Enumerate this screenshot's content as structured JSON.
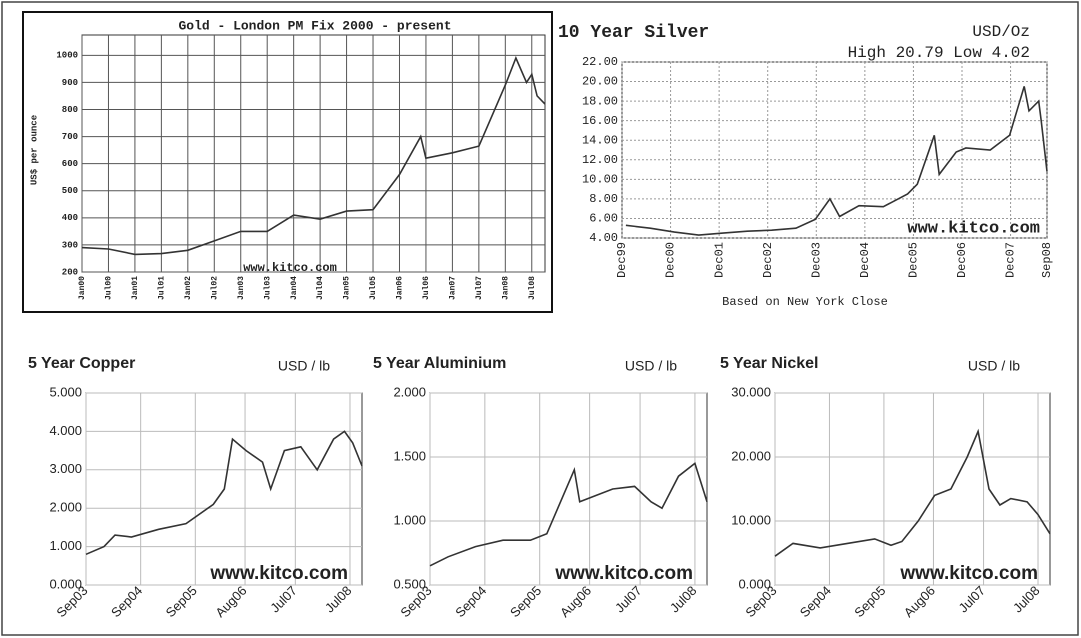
{
  "chart_data": [
    {
      "type": "line",
      "title": "Gold - London PM Fix 2000 - present",
      "ylabel": "US$ per ounce",
      "watermark": "www.kitco.com",
      "color": "#333333",
      "grid": true,
      "x": [
        2000.0,
        2000.5,
        2001.0,
        2001.5,
        2002.0,
        2002.5,
        2003.0,
        2003.5,
        2004.0,
        2004.5,
        2005.0,
        2005.5,
        2006.0,
        2006.4,
        2006.5,
        2007.0,
        2007.5,
        2008.0,
        2008.2,
        2008.4,
        2008.5,
        2008.6,
        2008.75
      ],
      "values": [
        290,
        285,
        265,
        268,
        280,
        315,
        350,
        350,
        410,
        395,
        425,
        430,
        560,
        700,
        620,
        640,
        665,
        890,
        990,
        900,
        930,
        850,
        820
      ],
      "xlim": [
        2000,
        2008.75
      ],
      "ylim": [
        200,
        1075
      ],
      "xticks": [
        {
          "value": 2000.0,
          "label": "Jan00"
        },
        {
          "value": 2000.5,
          "label": "Jul00"
        },
        {
          "value": 2001.0,
          "label": "Jan01"
        },
        {
          "value": 2001.5,
          "label": "Jul01"
        },
        {
          "value": 2002.0,
          "label": "Jan02"
        },
        {
          "value": 2002.5,
          "label": "Jul02"
        },
        {
          "value": 2003.0,
          "label": "Jan03"
        },
        {
          "value": 2003.5,
          "label": "Jul03"
        },
        {
          "value": 2004.0,
          "label": "Jan04"
        },
        {
          "value": 2004.5,
          "label": "Jul04"
        },
        {
          "value": 2005.0,
          "label": "Jan05"
        },
        {
          "value": 2005.5,
          "label": "Jul05"
        },
        {
          "value": 2006.0,
          "label": "Jan06"
        },
        {
          "value": 2006.5,
          "label": "Jul06"
        },
        {
          "value": 2007.0,
          "label": "Jan07"
        },
        {
          "value": 2007.5,
          "label": "Jul07"
        },
        {
          "value": 2008.0,
          "label": "Jan08"
        },
        {
          "value": 2008.5,
          "label": "Jul08"
        }
      ],
      "yticks": [
        200,
        300,
        400,
        500,
        600,
        700,
        800,
        900,
        1000
      ]
    },
    {
      "type": "line",
      "title": "10 Year Silver",
      "subtitle": "USD/Oz",
      "annotation": "High 20.79 Low 4.02",
      "xlabel": "Based on New York Close",
      "watermark": "www.kitco.com",
      "color": "#333333",
      "grid": true,
      "x": [
        2000.0,
        2000.5,
        2001.0,
        2001.5,
        2002.0,
        2002.5,
        2003.0,
        2003.5,
        2003.9,
        2004.2,
        2004.4,
        2004.8,
        2005.3,
        2005.8,
        2006.0,
        2006.35,
        2006.45,
        2006.8,
        2007.0,
        2007.5,
        2007.9,
        2008.2,
        2008.3,
        2008.5,
        2008.55,
        2008.67
      ],
      "values": [
        5.3,
        5.0,
        4.6,
        4.3,
        4.5,
        4.7,
        4.8,
        5.0,
        5.9,
        8.0,
        6.2,
        7.3,
        7.2,
        8.5,
        9.5,
        14.5,
        10.5,
        12.8,
        13.2,
        13.0,
        14.5,
        19.5,
        17.0,
        18.0,
        16.0,
        10.8
      ],
      "xlim": [
        1999.92,
        2008.67
      ],
      "ylim": [
        4,
        22
      ],
      "xticks": [
        {
          "value": 1999.92,
          "label": "Dec99"
        },
        {
          "value": 2000.92,
          "label": "Dec00"
        },
        {
          "value": 2001.92,
          "label": "Dec01"
        },
        {
          "value": 2002.92,
          "label": "Dec02"
        },
        {
          "value": 2003.92,
          "label": "Dec03"
        },
        {
          "value": 2004.92,
          "label": "Dec04"
        },
        {
          "value": 2005.92,
          "label": "Dec05"
        },
        {
          "value": 2006.92,
          "label": "Dec06"
        },
        {
          "value": 2007.92,
          "label": "Dec07"
        },
        {
          "value": 2008.67,
          "label": "Sep08"
        }
      ],
      "yticks": [
        {
          "value": 4,
          "label": "4.00"
        },
        {
          "value": 6,
          "label": "6.00"
        },
        {
          "value": 8,
          "label": "8.00"
        },
        {
          "value": 10,
          "label": "10.00"
        },
        {
          "value": 12,
          "label": "12.00"
        },
        {
          "value": 14,
          "label": "14.00"
        },
        {
          "value": 16,
          "label": "16.00"
        },
        {
          "value": 18,
          "label": "18.00"
        },
        {
          "value": 20,
          "label": "20.00"
        },
        {
          "value": 22,
          "label": "22.00"
        }
      ]
    },
    {
      "type": "line",
      "title": "5 Year Copper",
      "subtitle": "USD / lb",
      "watermark": "www.kitco.com",
      "color": "#333333",
      "grid": true,
      "x": [
        2003.67,
        2004.0,
        2004.2,
        2004.5,
        2005.0,
        2005.5,
        2006.0,
        2006.2,
        2006.35,
        2006.6,
        2006.9,
        2007.05,
        2007.3,
        2007.6,
        2007.9,
        2008.2,
        2008.4,
        2008.55,
        2008.72
      ],
      "values": [
        0.8,
        1.0,
        1.3,
        1.25,
        1.45,
        1.6,
        2.1,
        2.5,
        3.8,
        3.5,
        3.2,
        2.5,
        3.5,
        3.6,
        3.0,
        3.8,
        4.0,
        3.7,
        3.1
      ],
      "xlim": [
        2003.67,
        2008.72
      ],
      "ylim": [
        0,
        5
      ],
      "xticks": [
        {
          "value": 2003.67,
          "label": "Sep03"
        },
        {
          "value": 2004.67,
          "label": "Sep04"
        },
        {
          "value": 2005.67,
          "label": "Sep05"
        },
        {
          "value": 2006.58,
          "label": "Aug06"
        },
        {
          "value": 2007.5,
          "label": "Jul07"
        },
        {
          "value": 2008.5,
          "label": "Jul08"
        }
      ],
      "yticks": [
        {
          "value": 0,
          "label": "0.000"
        },
        {
          "value": 1,
          "label": "1.000"
        },
        {
          "value": 2,
          "label": "2.000"
        },
        {
          "value": 3,
          "label": "3.000"
        },
        {
          "value": 4,
          "label": "4.000"
        },
        {
          "value": 5,
          "label": "5.000"
        }
      ]
    },
    {
      "type": "line",
      "title": "5 Year Aluminium",
      "subtitle": "USD / lb",
      "watermark": "www.kitco.com",
      "color": "#333333",
      "grid": true,
      "x": [
        2003.67,
        2004.0,
        2004.5,
        2005.0,
        2005.5,
        2005.8,
        2006.0,
        2006.3,
        2006.4,
        2006.7,
        2007.0,
        2007.4,
        2007.7,
        2007.9,
        2008.2,
        2008.5,
        2008.72
      ],
      "values": [
        0.65,
        0.72,
        0.8,
        0.85,
        0.85,
        0.9,
        1.1,
        1.4,
        1.15,
        1.2,
        1.25,
        1.27,
        1.15,
        1.1,
        1.35,
        1.45,
        1.15
      ],
      "xlim": [
        2003.67,
        2008.72
      ],
      "ylim": [
        0.5,
        2
      ],
      "xticks": [
        {
          "value": 2003.67,
          "label": "Sep03"
        },
        {
          "value": 2004.67,
          "label": "Sep04"
        },
        {
          "value": 2005.67,
          "label": "Sep05"
        },
        {
          "value": 2006.58,
          "label": "Aug06"
        },
        {
          "value": 2007.5,
          "label": "Jul07"
        },
        {
          "value": 2008.5,
          "label": "Jul08"
        }
      ],
      "yticks": [
        {
          "value": 0.5,
          "label": "0.500"
        },
        {
          "value": 1,
          "label": "1.000"
        },
        {
          "value": 1.5,
          "label": "1.500"
        },
        {
          "value": 2,
          "label": "2.000"
        }
      ]
    },
    {
      "type": "line",
      "title": "5 Year Nickel",
      "subtitle": "USD / lb",
      "watermark": "www.kitco.com",
      "color": "#333333",
      "grid": true,
      "x": [
        2003.67,
        2004.0,
        2004.5,
        2005.0,
        2005.5,
        2005.8,
        2006.0,
        2006.3,
        2006.6,
        2006.9,
        2007.2,
        2007.4,
        2007.6,
        2007.8,
        2008.0,
        2008.3,
        2008.5,
        2008.72
      ],
      "values": [
        4.5,
        6.5,
        5.8,
        6.5,
        7.2,
        6.2,
        6.8,
        10,
        14,
        15,
        20,
        24,
        15,
        12.5,
        13.5,
        13,
        11,
        8
      ],
      "xlim": [
        2003.67,
        2008.72
      ],
      "ylim": [
        0,
        30
      ],
      "xticks": [
        {
          "value": 2003.67,
          "label": "Sep03"
        },
        {
          "value": 2004.67,
          "label": "Sep04"
        },
        {
          "value": 2005.67,
          "label": "Sep05"
        },
        {
          "value": 2006.58,
          "label": "Aug06"
        },
        {
          "value": 2007.5,
          "label": "Jul07"
        },
        {
          "value": 2008.5,
          "label": "Jul08"
        }
      ],
      "yticks": [
        {
          "value": 0,
          "label": "0.000"
        },
        {
          "value": 10,
          "label": "10.000"
        },
        {
          "value": 20,
          "label": "20.000"
        },
        {
          "value": 30,
          "label": "30.000"
        }
      ]
    }
  ]
}
